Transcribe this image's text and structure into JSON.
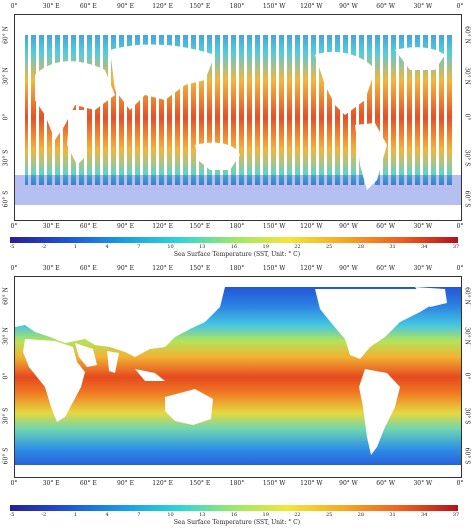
{
  "panels": [
    {
      "id": "top",
      "lon_labels_top": [
        "0°",
        "30° E",
        "60° E",
        "90° E",
        "120° E",
        "150° E",
        "180°",
        "150° W",
        "120° W",
        "90° W",
        "60° W",
        "30° W",
        "0°"
      ],
      "lon_labels_bottom": [
        "0°",
        "30° E",
        "60° E",
        "90° E",
        "120° E",
        "150° E",
        "180°",
        "150° W",
        "120° W",
        "90° W",
        "60° W",
        "30° W",
        "0°"
      ],
      "lat_labels": [
        "60° N",
        "30° N",
        "0°",
        "30° S",
        "60° S"
      ],
      "colorbar_ticks": [
        "-5",
        "-2",
        "1",
        "4",
        "7",
        "10",
        "13",
        "16",
        "19",
        "22",
        "25",
        "28",
        "31",
        "34",
        "37"
      ],
      "colorbar_label": "Sea Surface Temperature (SST, Unit: ° C)"
    },
    {
      "id": "bottom",
      "lon_labels_top": [
        "0°",
        "30° E",
        "60° E",
        "90° E",
        "120° E",
        "150° E",
        "180°",
        "150° W",
        "120° W",
        "90° W",
        "60° W",
        "30° W",
        "0°"
      ],
      "lon_labels_bottom": [
        "0°",
        "30° E",
        "60° E",
        "90° E",
        "120° E",
        "150° E",
        "180°",
        "150° W",
        "120° W",
        "90° W",
        "60° W",
        "30° W",
        "0°"
      ],
      "lat_labels": [
        "60° N",
        "30° N",
        "0°",
        "30° S",
        "60° S"
      ],
      "colorbar_ticks": [
        "-5",
        "-2",
        "1",
        "4",
        "7",
        "10",
        "13",
        "16",
        "19",
        "22",
        "25",
        "28",
        "31",
        "34",
        "37"
      ],
      "colorbar_label": "Sea Surface Temperature (SST, Unit: ° C)"
    }
  ],
  "colors": {
    "cold": "#1f3fd0",
    "cool": "#2fc6e0",
    "mild": "#a6e35a",
    "warm": "#f5a623",
    "hot": "#d7301f",
    "land": "#ffffff"
  }
}
